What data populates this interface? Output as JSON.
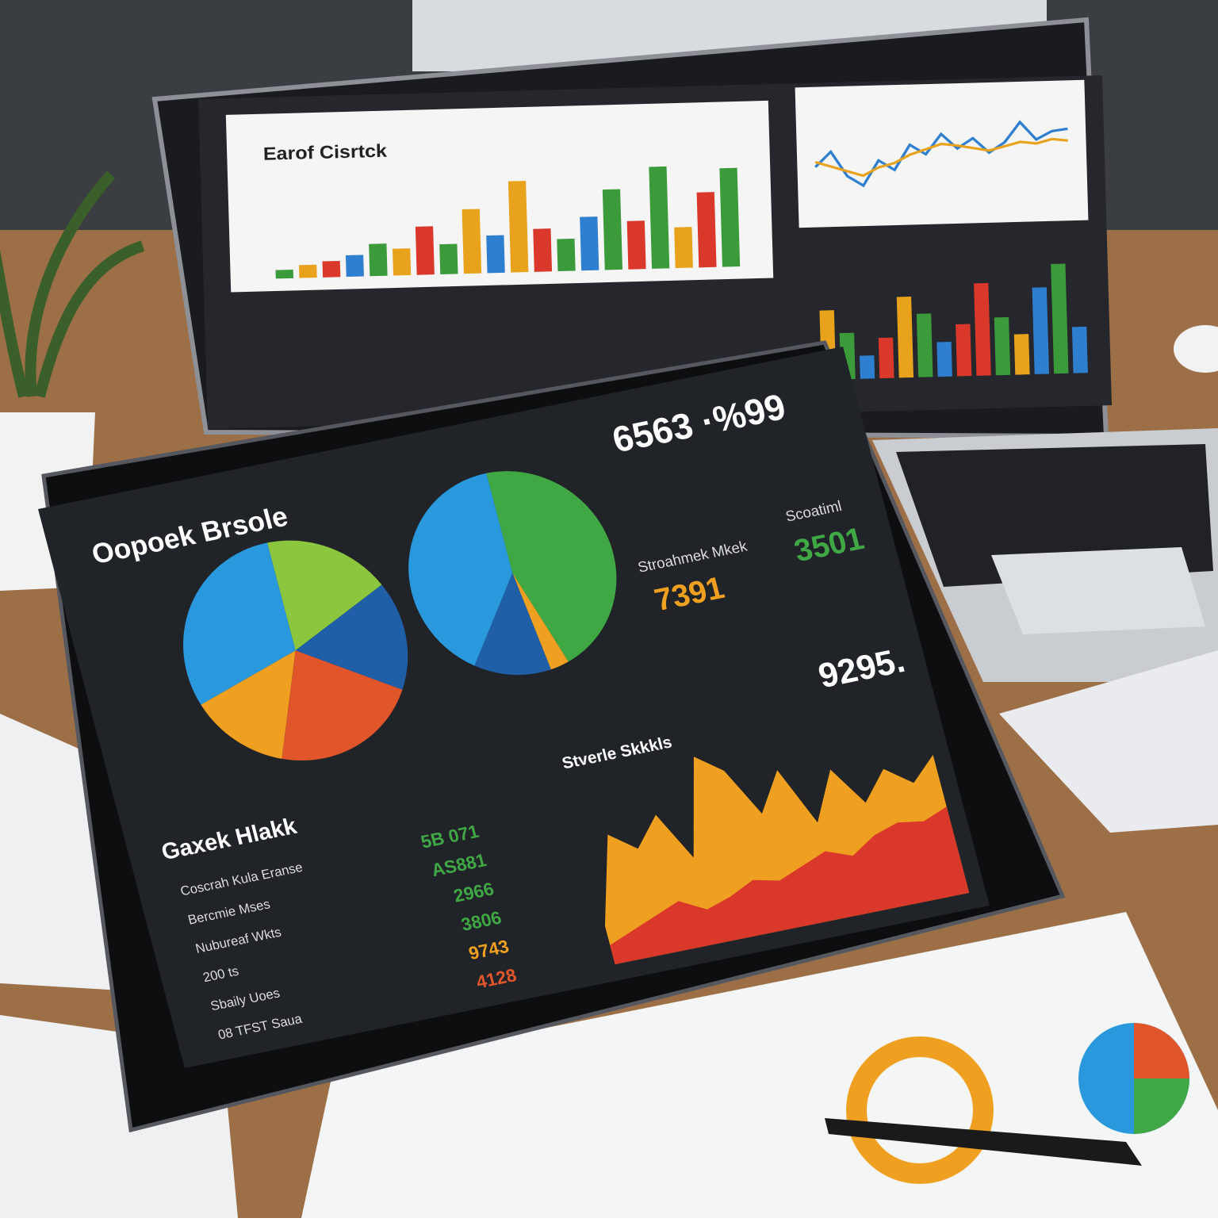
{
  "laptop": {
    "title": "Earof Cisrtck",
    "bars": {
      "ylim": [
        0,
        100
      ],
      "values": [
        8,
        12,
        15,
        20,
        30,
        25,
        45,
        28,
        60,
        35,
        85,
        40,
        30,
        50,
        75,
        45,
        95,
        38,
        70,
        92
      ],
      "colors": [
        "#3b9b3b",
        "#e8a21b",
        "#d9382b",
        "#2f7fd0",
        "#3b9b3b",
        "#e8a21b",
        "#d9382b",
        "#3b9b3b",
        "#e8a21b",
        "#2f7fd0",
        "#e8a21b",
        "#d9382b",
        "#3b9b3b",
        "#2f7fd0",
        "#3b9b3b",
        "#d9382b",
        "#3b9b3b",
        "#e8a21b",
        "#d9382b",
        "#3b9b3b"
      ]
    },
    "lines": {
      "ylim": [
        0,
        100
      ],
      "series": [
        {
          "name": "Blue",
          "color": "#2f7fd0",
          "values": [
            40,
            55,
            30,
            20,
            45,
            35,
            60,
            50,
            70,
            55,
            65,
            50,
            60,
            80,
            62,
            70,
            72
          ]
        },
        {
          "name": "Orange",
          "color": "#e8a21b",
          "values": [
            45,
            40,
            35,
            30,
            38,
            42,
            50,
            55,
            60,
            58,
            55,
            52,
            56,
            60,
            58,
            62,
            60
          ]
        }
      ]
    },
    "right_bars": {
      "ylim": [
        0,
        100
      ],
      "values": [
        60,
        40,
        20,
        35,
        70,
        55,
        30,
        45,
        80,
        50,
        35,
        75,
        95,
        40
      ],
      "colors": [
        "#e8a21b",
        "#3b9b3b",
        "#2f7fd0",
        "#d9382b",
        "#e8a21b",
        "#3b9b3b",
        "#2f7fd0",
        "#d9382b",
        "#d9382b",
        "#3b9b3b",
        "#e8a21b",
        "#2f7fd0",
        "#3b9b3b",
        "#2f7fd0"
      ]
    }
  },
  "tablet": {
    "title": "Oopoek Brsole",
    "pie1": {
      "values": [
        18,
        16,
        22,
        14,
        30
      ],
      "colors": [
        "#8cc63f",
        "#1f5fa8",
        "#e0552a",
        "#f0a020",
        "#2a98dc"
      ]
    },
    "pie2": {
      "values": [
        45,
        3,
        12,
        40
      ],
      "colors": [
        "#3fa845",
        "#f0a020",
        "#1f5fa8",
        "#2a98dc"
      ]
    },
    "kpi1": "6563 ·%99",
    "kpi2": "7391",
    "kpi3": "3501",
    "kpi4": "9295.",
    "kpi2_label": "Stroahmek Mkek",
    "kpi3_label": "Scoatiml",
    "panel_title": "Gaxek Hlakk",
    "rows": [
      {
        "label": "Coscrah Kula Eranse",
        "value": "5B 071",
        "color": "#3fa845"
      },
      {
        "label": "Bercmie Mses",
        "value": "AS881",
        "color": "#3fa845"
      },
      {
        "label": "Nubureaf Wkts",
        "value": "2966",
        "color": "#3fa845"
      },
      {
        "label": "200 ts",
        "value": "3806",
        "color": "#3fa845"
      },
      {
        "label": "Sbaily Uoes",
        "value": "9743",
        "color": "#f0a020"
      },
      {
        "label": "08 TFST Saua",
        "value": "4128",
        "color": "#e0552a"
      }
    ],
    "area_title": "Stverle Skkkls",
    "area": {
      "ylim": [
        0,
        100
      ],
      "series": [
        {
          "name": "Orange",
          "color": "#f0a020",
          "values": [
            20,
            65,
            55,
            70,
            45,
            95,
            85,
            60,
            80,
            50,
            75,
            55,
            70,
            60,
            72
          ]
        },
        {
          "name": "Red",
          "color": "#d9382b",
          "values": [
            10,
            15,
            20,
            25,
            18,
            22,
            28,
            25,
            30,
            35,
            30,
            38,
            42,
            40,
            45
          ]
        }
      ]
    }
  }
}
